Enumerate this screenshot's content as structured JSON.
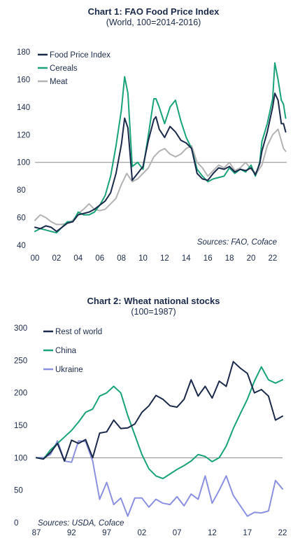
{
  "chart_data": [
    {
      "type": "line",
      "title": "Chart 1: FAO Food Price Index",
      "subtitle": "(World, 100=2014-2016)",
      "source": "Sources: FAO, Coface",
      "xlim": [
        2000,
        2023.3
      ],
      "ylim": [
        40,
        180
      ],
      "x_ticks": [
        2000,
        2002,
        2004,
        2006,
        2008,
        2010,
        2012,
        2014,
        2016,
        2018,
        2020,
        2022
      ],
      "x_tick_labels": [
        "00",
        "02",
        "04",
        "06",
        "08",
        "10",
        "12",
        "14",
        "16",
        "18",
        "20",
        "22"
      ],
      "y_ticks": [
        40,
        60,
        80,
        100,
        120,
        140,
        160,
        180
      ],
      "y_tick_labels": [
        "40",
        "60",
        "80",
        "100",
        "120",
        "140",
        "160",
        "180"
      ],
      "reference_line": 100,
      "legend_position": "top-left",
      "series": [
        {
          "name": "Food Price Index",
          "color": "#1b2a4a",
          "x": [
            2000,
            2000.5,
            2001,
            2001.5,
            2002,
            2002.5,
            2003,
            2003.5,
            2004,
            2004.5,
            2005,
            2005.5,
            2006,
            2006.5,
            2007,
            2007.5,
            2008,
            2008.3,
            2008.6,
            2009,
            2009.5,
            2010,
            2010.5,
            2011,
            2011.2,
            2011.5,
            2012,
            2012.5,
            2013,
            2013.5,
            2014,
            2014.5,
            2015,
            2015.5,
            2016,
            2016.5,
            2017,
            2017.5,
            2018,
            2018.5,
            2019,
            2019.5,
            2020,
            2020.4,
            2020.8,
            2021,
            2021.5,
            2022,
            2022.2,
            2022.5,
            2022.8,
            2023,
            2023.2
          ],
          "y": [
            53,
            52,
            54,
            53,
            50,
            53,
            56,
            57,
            62,
            63,
            64,
            66,
            69,
            72,
            78,
            92,
            113,
            132,
            125,
            87,
            92,
            97,
            116,
            131,
            133,
            124,
            118,
            126,
            122,
            116,
            114,
            110,
            92,
            88,
            87,
            92,
            96,
            95,
            97,
            93,
            95,
            94,
            96,
            91,
            99,
            108,
            122,
            140,
            150,
            145,
            128,
            128,
            122
          ]
        },
        {
          "name": "Cereals",
          "color": "#1aa37a",
          "x": [
            2000,
            2000.5,
            2001,
            2001.5,
            2002,
            2002.5,
            2003,
            2003.5,
            2004,
            2004.5,
            2005,
            2005.5,
            2006,
            2006.5,
            2007,
            2007.5,
            2008,
            2008.3,
            2008.6,
            2009,
            2009.5,
            2010,
            2010.5,
            2011,
            2011.2,
            2011.5,
            2012,
            2012.5,
            2013,
            2013.5,
            2014,
            2014.5,
            2015,
            2015.5,
            2016,
            2016.5,
            2017,
            2017.5,
            2018,
            2018.5,
            2019,
            2019.5,
            2020,
            2020.4,
            2020.8,
            2021,
            2021.5,
            2022,
            2022.2,
            2022.5,
            2022.8,
            2023,
            2023.2
          ],
          "y": [
            50,
            52,
            51,
            50,
            49,
            53,
            57,
            57,
            64,
            62,
            62,
            64,
            69,
            76,
            90,
            112,
            138,
            162,
            150,
            97,
            100,
            95,
            120,
            146,
            146,
            140,
            128,
            140,
            145,
            130,
            118,
            110,
            95,
            90,
            86,
            88,
            89,
            90,
            96,
            92,
            95,
            93,
            98,
            90,
            100,
            115,
            128,
            146,
            172,
            160,
            145,
            142,
            132
          ]
        },
        {
          "name": "Meat",
          "color": "#b3b3b3",
          "x": [
            2000,
            2000.5,
            2001,
            2001.5,
            2002,
            2002.5,
            2003,
            2003.5,
            2004,
            2004.5,
            2005,
            2005.5,
            2006,
            2006.5,
            2007,
            2007.5,
            2008,
            2008.5,
            2009,
            2009.5,
            2010,
            2010.5,
            2011,
            2011.5,
            2012,
            2012.5,
            2013,
            2013.5,
            2014,
            2014.5,
            2015,
            2015.5,
            2016,
            2016.5,
            2017,
            2017.5,
            2018,
            2018.5,
            2019,
            2019.5,
            2020,
            2020.5,
            2021,
            2021.5,
            2022,
            2022.5,
            2023,
            2023.2
          ],
          "y": [
            58,
            62,
            60,
            57,
            55,
            55,
            56,
            58,
            63,
            66,
            70,
            66,
            65,
            66,
            70,
            74,
            84,
            92,
            86,
            88,
            92,
            96,
            104,
            108,
            110,
            106,
            104,
            106,
            110,
            112,
            100,
            96,
            90,
            94,
            98,
            96,
            100,
            94,
            96,
            100,
            95,
            92,
            98,
            112,
            120,
            124,
            110,
            108
          ]
        }
      ]
    },
    {
      "type": "line",
      "title": "Chart 2: Wheat national stocks",
      "subtitle": "(100=1987)",
      "source": "Sources: USDA, Coface",
      "xlim": [
        1987,
        2022
      ],
      "ylim": [
        0,
        300
      ],
      "x_ticks": [
        1987,
        1992,
        1997,
        2002,
        2007,
        2012,
        2017,
        2022
      ],
      "x_tick_labels": [
        "87",
        "92",
        "97",
        "02",
        "07",
        "12",
        "17",
        "22"
      ],
      "y_ticks": [
        0,
        50,
        100,
        150,
        200,
        250,
        300
      ],
      "y_tick_labels": [
        "0",
        "50",
        "100",
        "150",
        "200",
        "250",
        "300"
      ],
      "reference_line": 100,
      "legend_position": "top-left",
      "series": [
        {
          "name": "Rest of world",
          "color": "#1b2a4a",
          "x": [
            1987,
            1988,
            1989,
            1990,
            1991,
            1992,
            1993,
            1994,
            1995,
            1996,
            1997,
            1998,
            1999,
            2000,
            2001,
            2002,
            2003,
            2004,
            2005,
            2006,
            2007,
            2008,
            2009,
            2010,
            2011,
            2012,
            2013,
            2014,
            2015,
            2016,
            2017,
            2018,
            2019,
            2020,
            2021,
            2022
          ],
          "y": [
            100,
            98,
            108,
            122,
            95,
            127,
            122,
            128,
            100,
            138,
            140,
            158,
            145,
            146,
            152,
            170,
            180,
            196,
            190,
            180,
            178,
            190,
            220,
            195,
            210,
            192,
            218,
            210,
            248,
            238,
            230,
            200,
            205,
            195,
            158,
            164
          ]
        },
        {
          "name": "China",
          "color": "#1aa37a",
          "x": [
            1987,
            1988,
            1989,
            1990,
            1991,
            1992,
            1993,
            1994,
            1995,
            1996,
            1997,
            1998,
            1999,
            2000,
            2001,
            2002,
            2003,
            2004,
            2005,
            2006,
            2007,
            2008,
            2009,
            2010,
            2011,
            2012,
            2013,
            2014,
            2015,
            2016,
            2017,
            2018,
            2019,
            2020,
            2021,
            2022
          ],
          "y": [
            100,
            98,
            112,
            122,
            132,
            142,
            155,
            170,
            175,
            195,
            200,
            210,
            200,
            165,
            135,
            105,
            83,
            72,
            68,
            75,
            82,
            88,
            95,
            105,
            102,
            94,
            100,
            118,
            145,
            168,
            190,
            218,
            240,
            220,
            215,
            220
          ]
        },
        {
          "name": "Ukraine",
          "color": "#8b90e0",
          "x": [
            1987,
            1988,
            1989,
            1990,
            1991,
            1992,
            1993,
            1994,
            1995,
            1996,
            1997,
            1998,
            1999,
            2000,
            2001,
            2002,
            2003,
            2004,
            2005,
            2006,
            2007,
            2008,
            2009,
            2010,
            2011,
            2012,
            2013,
            2014,
            2015,
            2016,
            2017,
            2018,
            2019,
            2020,
            2021,
            2022
          ],
          "y": [
            100,
            100,
            105,
            126,
            95,
            93,
            126,
            125,
            95,
            36,
            62,
            28,
            38,
            10,
            38,
            38,
            24,
            36,
            30,
            28,
            40,
            26,
            44,
            36,
            72,
            30,
            50,
            72,
            42,
            26,
            10,
            16,
            15,
            18,
            65,
            52
          ]
        }
      ]
    }
  ]
}
